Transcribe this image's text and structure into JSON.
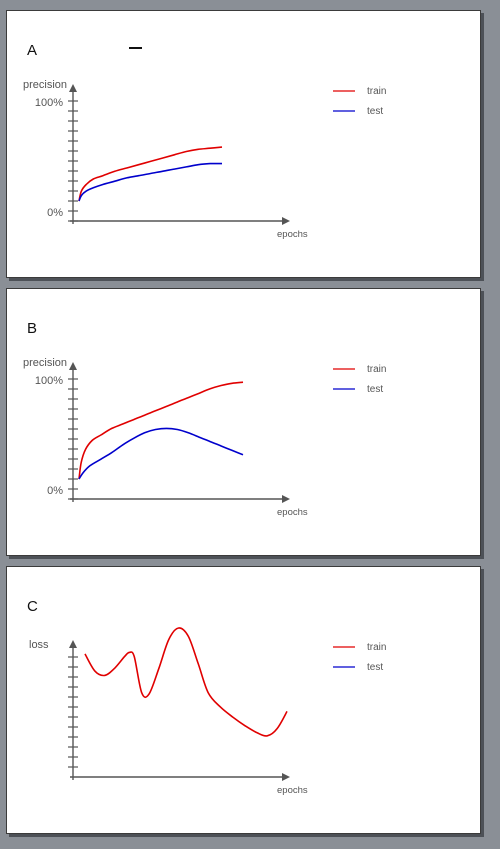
{
  "colors": {
    "train": "#e00000",
    "test": "#0000cc",
    "axis": "#555555",
    "background": "#8a8f96"
  },
  "panels": [
    {
      "letter": "A",
      "has_title_dash": true,
      "ylabel": "precision",
      "xlabel": "epochs",
      "ytick_top": "100%",
      "ytick_bottom": "0%",
      "legend": [
        "train",
        "test"
      ]
    },
    {
      "letter": "B",
      "has_title_dash": false,
      "ylabel": "precision",
      "xlabel": "epochs",
      "ytick_top": "100%",
      "ytick_bottom": "0%",
      "legend": [
        "train",
        "test"
      ]
    },
    {
      "letter": "C",
      "has_title_dash": false,
      "ylabel": "loss",
      "xlabel": "epochs",
      "ytick_top": "",
      "ytick_bottom": "",
      "legend": [
        "train",
        "test"
      ]
    }
  ],
  "chart_data": [
    {
      "type": "line",
      "title": "A",
      "xlabel": "epochs",
      "ylabel": "precision",
      "yticks": [
        "0%",
        "100%"
      ],
      "ylim": [
        0,
        100
      ],
      "legend": "top-right",
      "series": [
        {
          "name": "train",
          "color": "#e00000",
          "x": [
            0,
            1,
            3,
            6,
            10,
            15,
            20,
            25,
            30,
            35,
            40,
            45,
            50,
            55,
            60
          ],
          "y": [
            10,
            19,
            25,
            30,
            33,
            37,
            40,
            43,
            46,
            49,
            52,
            55,
            57,
            58,
            59
          ]
        },
        {
          "name": "test",
          "color": "#0000cc",
          "x": [
            0,
            1,
            3,
            6,
            10,
            15,
            20,
            25,
            30,
            35,
            40,
            45,
            50,
            55,
            60
          ],
          "y": [
            10,
            15,
            19,
            22,
            25,
            28,
            31,
            33,
            35,
            37,
            39,
            41,
            43,
            44,
            44
          ]
        }
      ]
    },
    {
      "type": "line",
      "title": "B",
      "xlabel": "epochs",
      "ylabel": "precision",
      "yticks": [
        "0%",
        "100%"
      ],
      "ylim": [
        0,
        100
      ],
      "legend": "top-right",
      "series": [
        {
          "name": "train",
          "color": "#e00000",
          "x": [
            0,
            1,
            3,
            6,
            10,
            15,
            20,
            25,
            30,
            35,
            40,
            45,
            50,
            55,
            60,
            65,
            70,
            75
          ],
          "y": [
            10,
            25,
            37,
            45,
            50,
            56,
            60,
            64,
            68,
            72,
            76,
            80,
            84,
            88,
            92,
            95,
            97,
            98
          ]
        },
        {
          "name": "test",
          "color": "#0000cc",
          "x": [
            0,
            2,
            5,
            10,
            15,
            20,
            25,
            30,
            35,
            40,
            45,
            50,
            55,
            60,
            65,
            70,
            75
          ],
          "y": [
            10,
            16,
            22,
            28,
            34,
            41,
            47,
            52,
            55,
            56,
            55,
            52,
            48,
            44,
            40,
            36,
            32
          ]
        }
      ]
    },
    {
      "type": "line",
      "title": "C",
      "xlabel": "epochs",
      "ylabel": "loss",
      "legend": "top-right",
      "series": [
        {
          "name": "train",
          "color": "#e00000",
          "x": [
            0,
            4,
            8,
            12,
            16,
            18,
            20,
            23,
            26,
            30,
            34,
            38,
            42,
            46,
            50,
            55,
            60,
            65,
            70,
            74,
            78,
            82
          ],
          "y": [
            0.82,
            0.7,
            0.67,
            0.72,
            0.8,
            0.83,
            0.8,
            0.55,
            0.54,
            0.72,
            0.92,
            1.0,
            0.94,
            0.75,
            0.55,
            0.45,
            0.38,
            0.32,
            0.27,
            0.25,
            0.3,
            0.42
          ]
        },
        {
          "name": "test",
          "color": "#0000cc",
          "x": [],
          "y": []
        }
      ]
    }
  ]
}
